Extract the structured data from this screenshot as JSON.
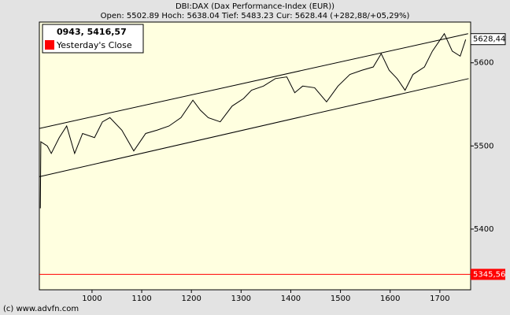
{
  "chart_data": {
    "type": "line",
    "title": "DBI:DAX (Dax Performance-Index (EUR))",
    "subtitle": "Open: 5502.89 Hoch: 5638.04 Tief: 5483.23 Cur: 5628.44 (+282,88/+05,29%)",
    "cursor_readout": "0943, 5416,57",
    "copyright": "(c) www.advfn.com",
    "x": [
      896,
      897,
      910,
      918,
      934,
      949,
      965,
      981,
      1005,
      1021,
      1036,
      1060,
      1084,
      1108,
      1131,
      1155,
      1179,
      1203,
      1218,
      1234,
      1258,
      1282,
      1305,
      1321,
      1345,
      1369,
      1392,
      1408,
      1424,
      1448,
      1472,
      1495,
      1519,
      1543,
      1566,
      1582,
      1598,
      1614,
      1630,
      1646,
      1669,
      1685,
      1709,
      1725,
      1741,
      1752
    ],
    "series": [
      {
        "color": "#000000",
        "values": [
          5425,
          5505,
          5500,
          5491,
          5510,
          5524,
          5491,
          5515,
          5510,
          5529,
          5534,
          5519,
          5494,
          5515,
          5519,
          5524,
          5534,
          5555,
          5543,
          5534,
          5529,
          5548,
          5557,
          5567,
          5572,
          5581,
          5583,
          5564,
          5572,
          5570,
          5553,
          5572,
          5586,
          5591,
          5595,
          5611,
          5591,
          5581,
          5567,
          5586,
          5595,
          5614,
          5635,
          5614,
          5608,
          5628
        ]
      }
    ],
    "channel": [
      {
        "color": "#000000",
        "x": [
          894,
          1757
        ],
        "values": [
          5521,
          5635
        ]
      },
      {
        "color": "#000000",
        "x": [
          894,
          1758
        ],
        "values": [
          5463,
          5581
        ]
      }
    ],
    "last_label": {
      "value": 5628.44,
      "label": "5628,44"
    },
    "reference_lines": [
      {
        "name": "Yesterday's Close",
        "value": 5345.56,
        "label": "5345,56",
        "color": "#ff0000"
      }
    ],
    "xlim": [
      894,
      1762
    ],
    "xticks": [
      1000,
      1100,
      1200,
      1300,
      1400,
      1500,
      1600,
      1700
    ],
    "ylim": [
      5327,
      5649
    ],
    "yticks": [
      5400,
      5500,
      5600
    ],
    "grid": false
  }
}
